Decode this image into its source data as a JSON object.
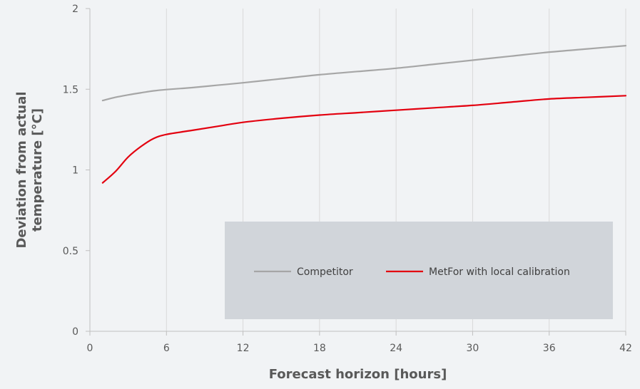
{
  "chart_data": {
    "type": "line",
    "title": "",
    "xlabel": "Forecast horizon [hours]",
    "ylabel_lines": [
      "Deviation from actual",
      "temperature [°C]"
    ],
    "xlim": [
      0,
      42
    ],
    "ylim": [
      0,
      2
    ],
    "x_ticks": [
      0,
      6,
      12,
      18,
      24,
      30,
      36,
      42
    ],
    "y_ticks": [
      0,
      0.5,
      1,
      1.5,
      2
    ],
    "y_tick_labels": [
      "0",
      "0.5",
      "1",
      "1.5",
      "2"
    ],
    "grid": {
      "vertical": true,
      "horizontal": false
    },
    "legend": {
      "placement": "inside-bottom-right",
      "background": "#d1d5da"
    },
    "series": [
      {
        "name": "Competitor",
        "color": "#a6a6a6",
        "x": [
          1,
          2,
          3,
          4,
          5,
          6,
          8,
          10,
          12,
          15,
          18,
          21,
          24,
          27,
          30,
          33,
          36,
          39,
          42
        ],
        "y": [
          1.43,
          1.45,
          1.465,
          1.478,
          1.49,
          1.498,
          1.51,
          1.525,
          1.54,
          1.565,
          1.59,
          1.61,
          1.63,
          1.655,
          1.68,
          1.705,
          1.73,
          1.75,
          1.77
        ]
      },
      {
        "name": "MetFor with local calibration",
        "color": "#e3000f",
        "x": [
          1,
          2,
          3,
          4,
          5,
          6,
          8,
          10,
          12,
          15,
          18,
          21,
          24,
          27,
          30,
          33,
          36,
          39,
          42
        ],
        "y": [
          0.92,
          0.99,
          1.08,
          1.145,
          1.195,
          1.22,
          1.245,
          1.27,
          1.295,
          1.32,
          1.34,
          1.355,
          1.37,
          1.385,
          1.4,
          1.42,
          1.44,
          1.45,
          1.46
        ]
      }
    ]
  }
}
